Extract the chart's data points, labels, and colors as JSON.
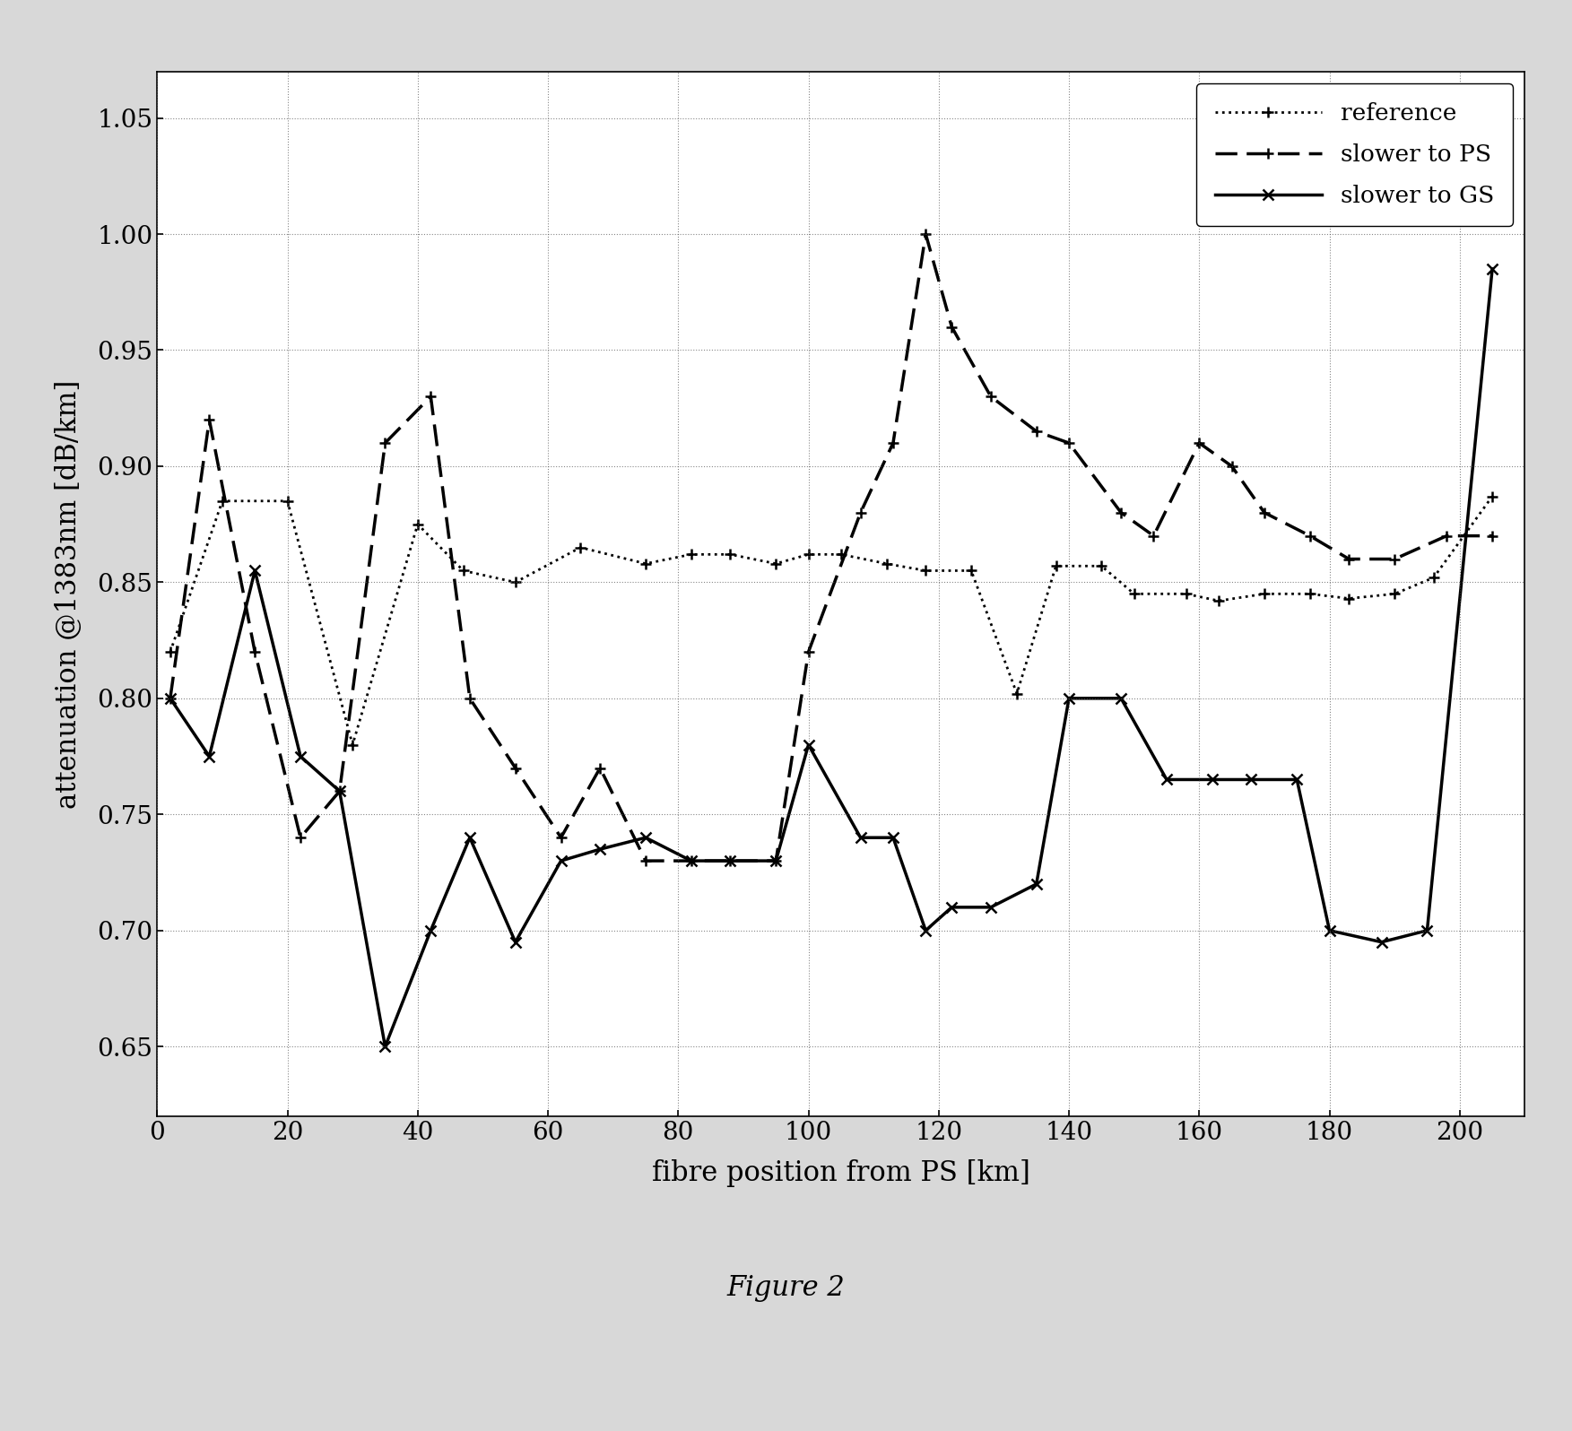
{
  "title": "",
  "xlabel": "fibre position from PS [km]",
  "ylabel": "attenuation @1383nm [dB/km]",
  "xlim": [
    0,
    210
  ],
  "ylim": [
    0.62,
    1.07
  ],
  "yticks": [
    0.65,
    0.7,
    0.75,
    0.8,
    0.85,
    0.9,
    0.95,
    1.0,
    1.05
  ],
  "xticks": [
    0,
    20,
    40,
    60,
    80,
    100,
    120,
    140,
    160,
    180,
    200
  ],
  "figure_caption": "Figure 2",
  "bg_color": "#d8d8d8",
  "plot_bg_color": "#ffffff",
  "reference": {
    "label": "reference",
    "x": [
      2,
      10,
      20,
      30,
      40,
      47,
      55,
      65,
      75,
      82,
      88,
      95,
      100,
      105,
      112,
      118,
      125,
      132,
      138,
      145,
      150,
      158,
      163,
      170,
      177,
      183,
      190,
      196,
      205
    ],
    "y": [
      0.82,
      0.885,
      0.885,
      0.78,
      0.875,
      0.855,
      0.85,
      0.865,
      0.858,
      0.862,
      0.862,
      0.858,
      0.862,
      0.862,
      0.858,
      0.855,
      0.855,
      0.802,
      0.857,
      0.857,
      0.845,
      0.845,
      0.842,
      0.845,
      0.845,
      0.843,
      0.845,
      0.852,
      0.887
    ],
    "color": "#000000",
    "linestyle": "dotted",
    "linewidth": 2.0,
    "marker": "+"
  },
  "slower_ps": {
    "label": "slower to PS",
    "x": [
      2,
      8,
      15,
      22,
      28,
      35,
      42,
      48,
      55,
      62,
      68,
      75,
      82,
      88,
      95,
      100,
      108,
      113,
      118,
      122,
      128,
      135,
      140,
      148,
      153,
      160,
      165,
      170,
      177,
      183,
      190,
      198,
      205
    ],
    "y": [
      0.8,
      0.92,
      0.82,
      0.74,
      0.76,
      0.91,
      0.93,
      0.8,
      0.77,
      0.74,
      0.77,
      0.73,
      0.73,
      0.73,
      0.73,
      0.82,
      0.88,
      0.91,
      1.0,
      0.96,
      0.93,
      0.915,
      0.91,
      0.88,
      0.87,
      0.91,
      0.9,
      0.88,
      0.87,
      0.86,
      0.86,
      0.87,
      0.87
    ],
    "color": "#000000",
    "linestyle": "dashed",
    "linewidth": 2.5,
    "marker": "+"
  },
  "slower_gs": {
    "label": "slower to GS",
    "x": [
      2,
      8,
      15,
      22,
      28,
      35,
      42,
      48,
      55,
      62,
      68,
      75,
      82,
      88,
      95,
      100,
      108,
      113,
      118,
      122,
      128,
      135,
      140,
      148,
      155,
      162,
      168,
      175,
      180,
      188,
      195,
      205
    ],
    "y": [
      0.8,
      0.775,
      0.855,
      0.775,
      0.76,
      0.65,
      0.7,
      0.74,
      0.695,
      0.73,
      0.735,
      0.74,
      0.73,
      0.73,
      0.73,
      0.78,
      0.74,
      0.74,
      0.7,
      0.71,
      0.71,
      0.72,
      0.8,
      0.8,
      0.765,
      0.765,
      0.765,
      0.765,
      0.7,
      0.695,
      0.7,
      0.985
    ],
    "color": "#000000",
    "linestyle": "solid",
    "linewidth": 2.5,
    "marker": "x"
  }
}
